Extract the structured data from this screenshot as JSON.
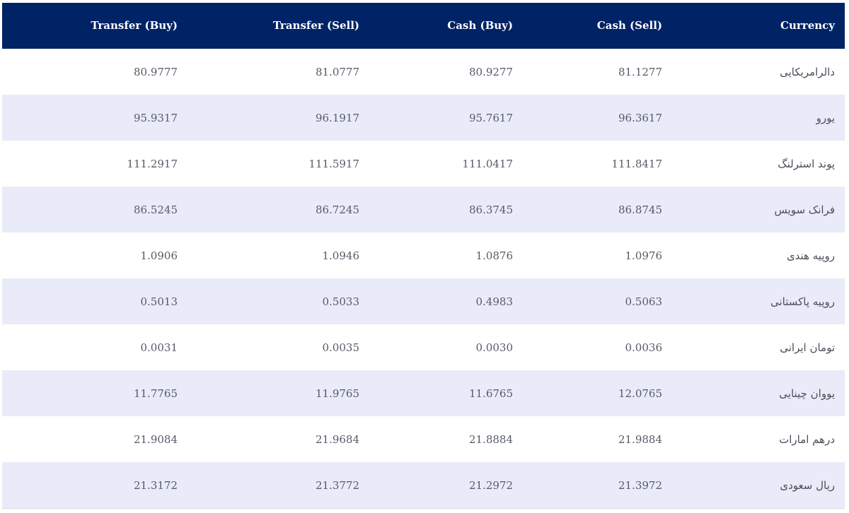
{
  "table": {
    "headers": {
      "transfer_buy": "Transfer (Buy)",
      "transfer_sell": "Transfer (Sell)",
      "cash_buy": "Cash (Buy)",
      "cash_sell": "Cash (Sell)",
      "currency": "Currency"
    },
    "rows": [
      {
        "currency": "دالرامریکایی",
        "cash_sell": "81.1277",
        "cash_buy": "80.9277",
        "transfer_sell": "81.0777",
        "transfer_buy": "80.9777"
      },
      {
        "currency": "یورو",
        "cash_sell": "96.3617",
        "cash_buy": "95.7617",
        "transfer_sell": "96.1917",
        "transfer_buy": "95.9317"
      },
      {
        "currency": "پوند استرلنگ",
        "cash_sell": "111.8417",
        "cash_buy": "111.0417",
        "transfer_sell": "111.5917",
        "transfer_buy": "111.2917"
      },
      {
        "currency": "فرانک سویس",
        "cash_sell": "86.8745",
        "cash_buy": "86.3745",
        "transfer_sell": "86.7245",
        "transfer_buy": "86.5245"
      },
      {
        "currency": "روپیه هندی",
        "cash_sell": "1.0976",
        "cash_buy": "1.0876",
        "transfer_sell": "1.0946",
        "transfer_buy": "1.0906"
      },
      {
        "currency": "روپیه پاکستانی",
        "cash_sell": "0.5063",
        "cash_buy": "0.4983",
        "transfer_sell": "0.5033",
        "transfer_buy": "0.5013"
      },
      {
        "currency": "تومان ایرانی",
        "cash_sell": "0.0036",
        "cash_buy": "0.0030",
        "transfer_sell": "0.0035",
        "transfer_buy": "0.0031"
      },
      {
        "currency": "یووان چینایی",
        "cash_sell": "12.0765",
        "cash_buy": "11.6765",
        "transfer_sell": "11.9765",
        "transfer_buy": "11.7765"
      },
      {
        "currency": "درهم امارات",
        "cash_sell": "21.9884",
        "cash_buy": "21.8884",
        "transfer_sell": "21.9684",
        "transfer_buy": "21.9084"
      },
      {
        "currency": "ریال سعودی",
        "cash_sell": "21.3972",
        "cash_buy": "21.2972",
        "transfer_sell": "21.3772",
        "transfer_buy": "21.3172"
      }
    ]
  },
  "colors": {
    "header_bg": "#002366",
    "header_text": "#ffffff",
    "row_alt_bg": "#e9ebf8",
    "cell_text": "#555b66"
  }
}
